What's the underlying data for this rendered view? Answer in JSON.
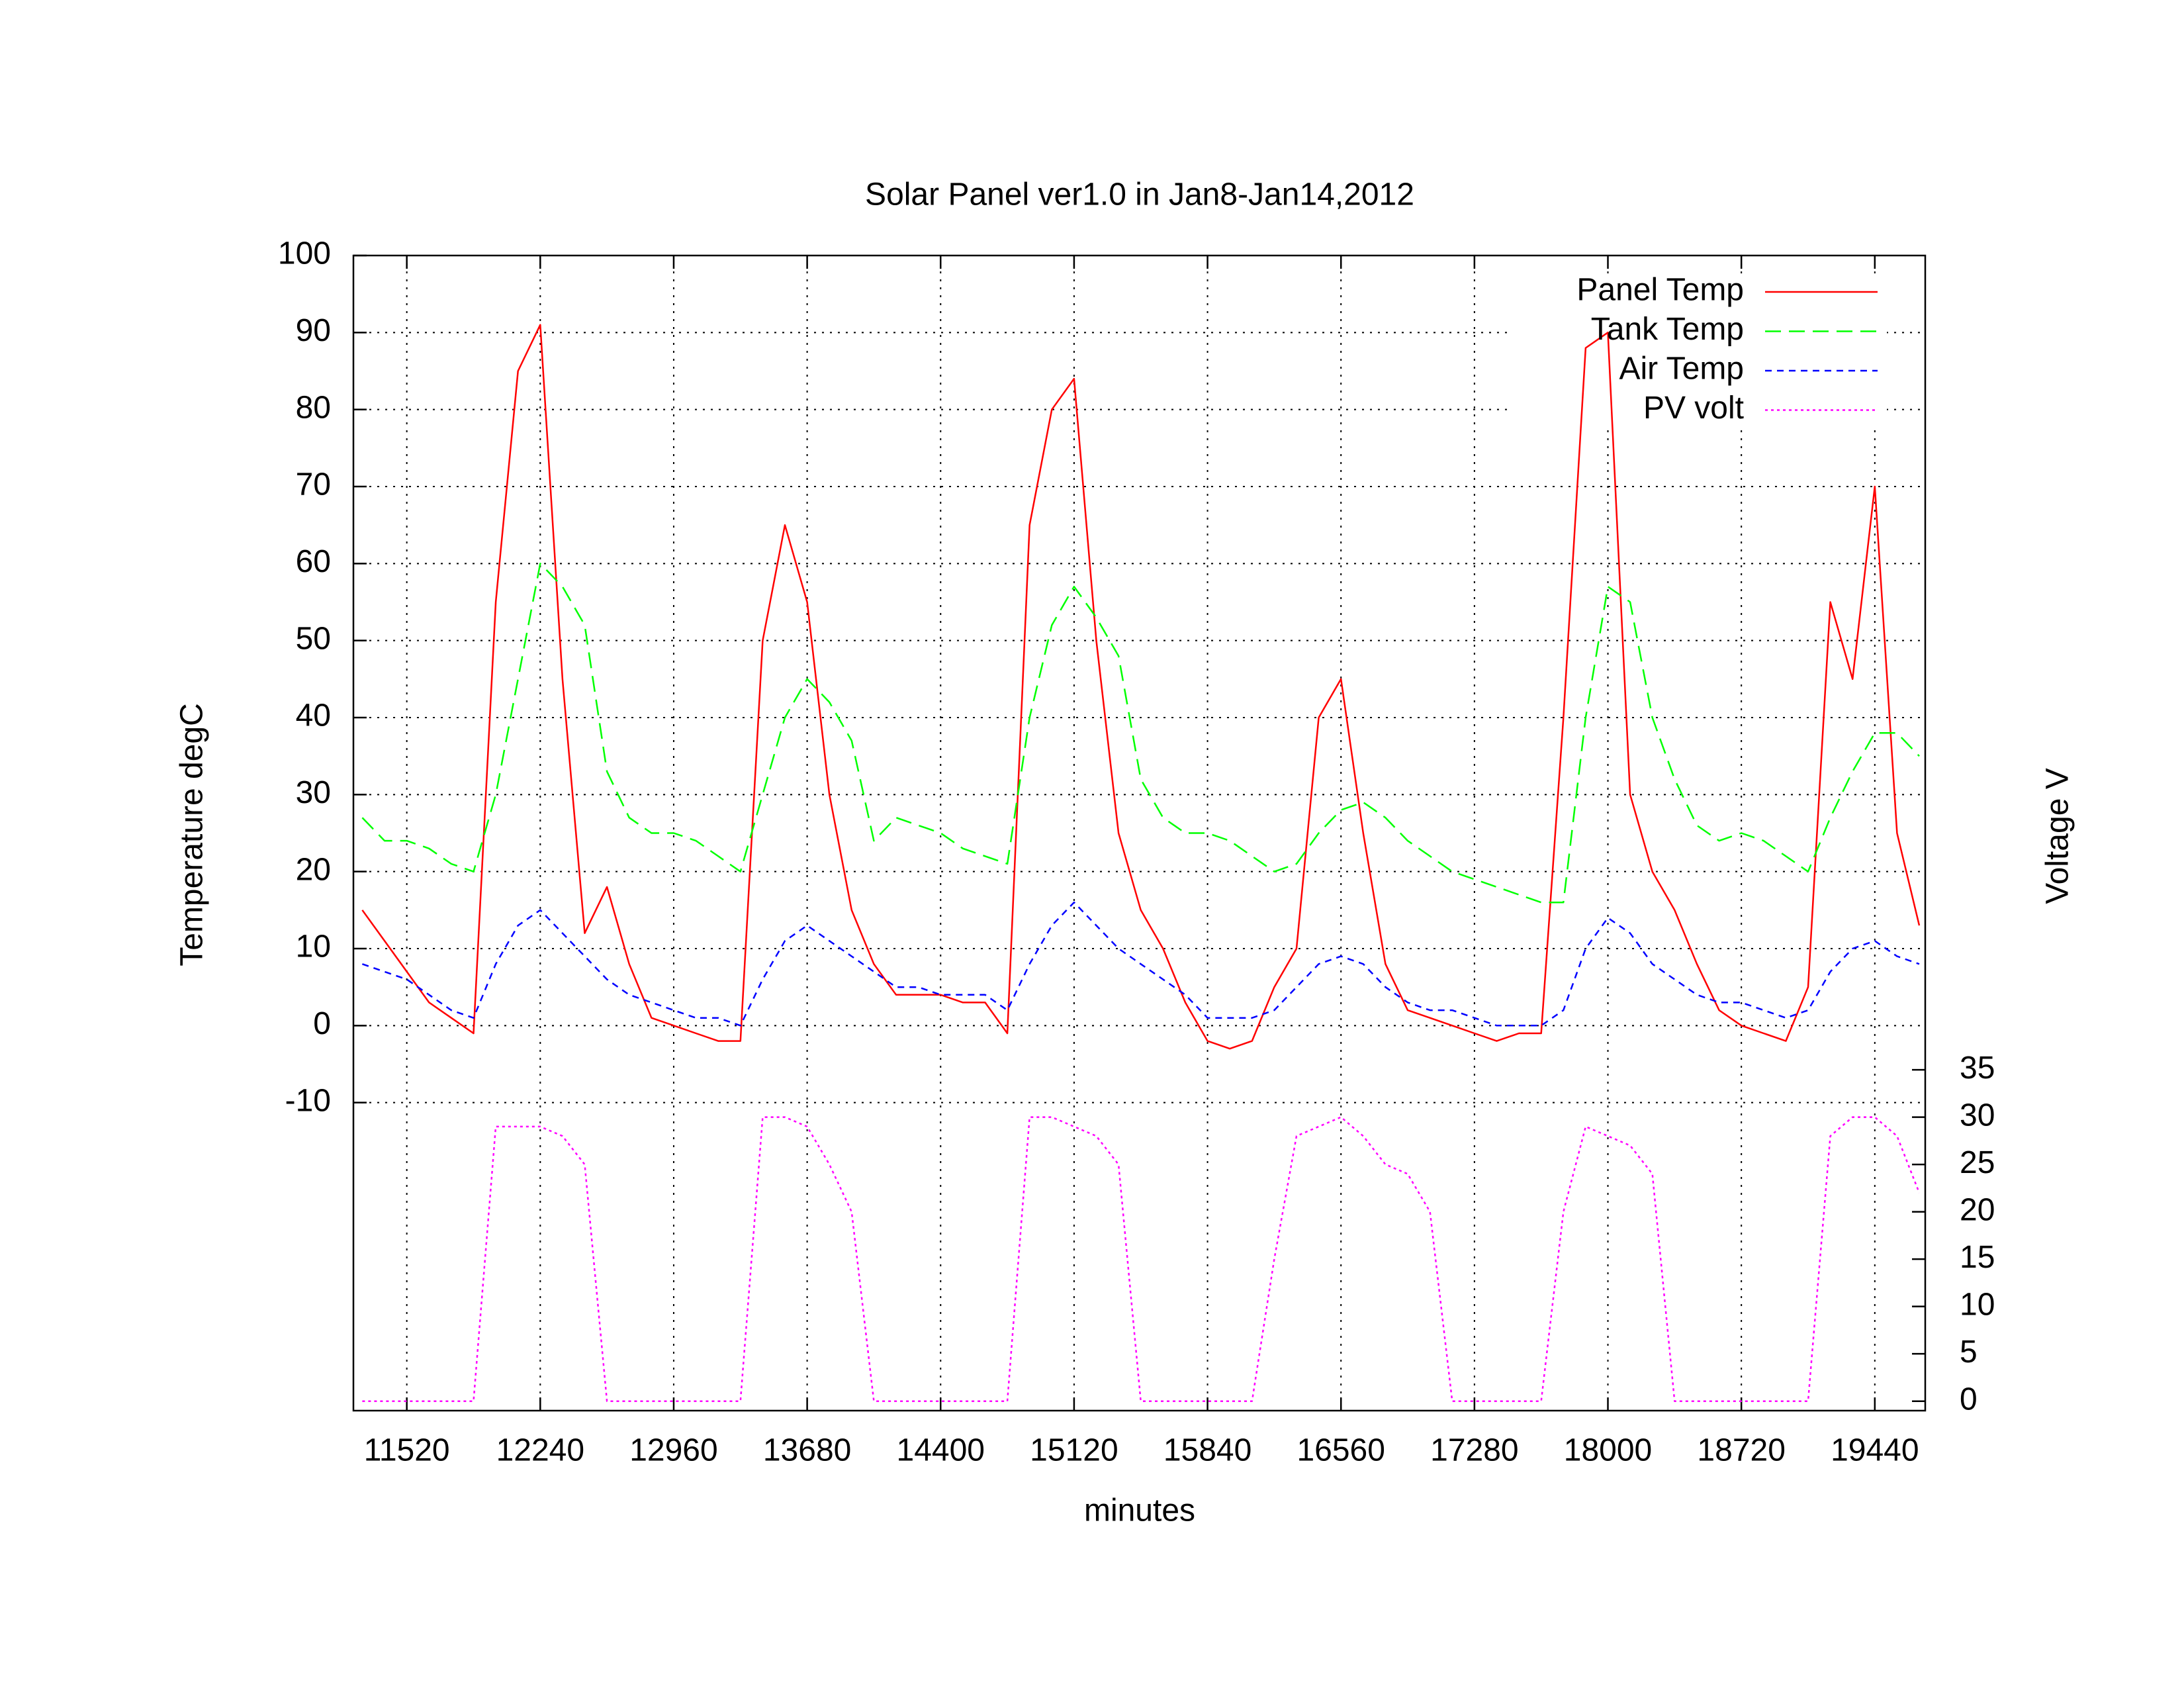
{
  "chart_data": {
    "type": "line",
    "title": "Solar Panel ver1.0 in Jan8-Jan14,2012",
    "x_label": "minutes",
    "y_label": "Temperature degC",
    "y2_label": "Voltage V",
    "x": [
      11280,
      11400,
      11520,
      11640,
      11760,
      11880,
      12000,
      12120,
      12240,
      12360,
      12480,
      12600,
      12720,
      12840,
      12960,
      13080,
      13200,
      13320,
      13440,
      13560,
      13680,
      13800,
      13920,
      14040,
      14160,
      14280,
      14400,
      14520,
      14640,
      14760,
      14880,
      15000,
      15120,
      15240,
      15360,
      15480,
      15600,
      15720,
      15840,
      15960,
      16080,
      16200,
      16320,
      16440,
      16560,
      16680,
      16800,
      16920,
      17040,
      17160,
      17280,
      17400,
      17520,
      17640,
      17760,
      17880,
      18000,
      18120,
      18240,
      18360,
      18480,
      18600,
      18720,
      18840,
      18960,
      19080,
      19200,
      19320,
      19440,
      19560,
      19680
    ],
    "series": [
      {
        "name": "Panel Temp",
        "color": "#ff0000",
        "dash": "solid",
        "values": [
          15,
          11,
          7,
          3,
          1,
          -1,
          55,
          85,
          91,
          45,
          12,
          18,
          8,
          1,
          0,
          -1,
          -2,
          -2,
          50,
          65,
          55,
          30,
          15,
          8,
          4,
          4,
          4,
          3,
          3,
          -1,
          65,
          80,
          84,
          50,
          25,
          15,
          10,
          3,
          -2,
          -3,
          -2,
          5,
          10,
          40,
          45,
          25,
          8,
          2,
          1,
          0,
          -1,
          -2,
          -1,
          -1,
          40,
          88,
          90,
          30,
          20,
          15,
          8,
          2,
          0,
          -1,
          -2,
          5,
          55,
          45,
          70,
          25,
          13
        ]
      },
      {
        "name": "Tank Temp",
        "color": "#00ff00",
        "dash": "dashed",
        "values": [
          27,
          24,
          24,
          23,
          21,
          20,
          30,
          45,
          60,
          57,
          52,
          33,
          27,
          25,
          25,
          24,
          22,
          20,
          30,
          40,
          45,
          42,
          37,
          24,
          27,
          26,
          25,
          23,
          22,
          21,
          40,
          52,
          57,
          53,
          48,
          32,
          27,
          25,
          25,
          24,
          22,
          20,
          21,
          25,
          28,
          29,
          27,
          24,
          22,
          20,
          19,
          18,
          17,
          16,
          16,
          40,
          57,
          55,
          40,
          32,
          26,
          24,
          25,
          24,
          22,
          20,
          27,
          33,
          38,
          38,
          35
        ]
      },
      {
        "name": "Air Temp",
        "color": "#0000ff",
        "dash": "short-dashed",
        "values": [
          8,
          7,
          6,
          4,
          2,
          1,
          8,
          13,
          15,
          12,
          9,
          6,
          4,
          3,
          2,
          1,
          1,
          0,
          6,
          11,
          13,
          11,
          9,
          7,
          5,
          5,
          4,
          4,
          4,
          2,
          8,
          13,
          16,
          13,
          10,
          8,
          6,
          4,
          1,
          1,
          1,
          2,
          5,
          8,
          9,
          8,
          5,
          3,
          2,
          2,
          1,
          0,
          0,
          0,
          2,
          10,
          14,
          12,
          8,
          6,
          4,
          3,
          3,
          2,
          1,
          2,
          7,
          10,
          11,
          9,
          8
        ]
      },
      {
        "name": "PV volt",
        "color": "#ff00ff",
        "dash": "dotted",
        "axis": "y2",
        "values": [
          0,
          0,
          0,
          0,
          0,
          0,
          29,
          29,
          29,
          28,
          25,
          0,
          0,
          0,
          0,
          0,
          0,
          0,
          30,
          30,
          29,
          25,
          20,
          0,
          0,
          0,
          0,
          0,
          0,
          0,
          30,
          30,
          29,
          28,
          25,
          0,
          0,
          0,
          0,
          0,
          0,
          15,
          28,
          29,
          30,
          28,
          25,
          24,
          20,
          0,
          0,
          0,
          0,
          0,
          20,
          29,
          28,
          27,
          24,
          0,
          0,
          0,
          0,
          0,
          0,
          0,
          28,
          30,
          30,
          28,
          22
        ]
      }
    ],
    "xlim": [
      11232,
      19712
    ],
    "xticks": [
      11520,
      12240,
      12960,
      13680,
      14400,
      15120,
      15840,
      16560,
      17280,
      18000,
      18720,
      19440
    ],
    "ylim": [
      -50,
      100
    ],
    "yticks": [
      -10,
      0,
      10,
      20,
      30,
      40,
      50,
      60,
      70,
      80,
      90,
      100
    ],
    "y2lim": [
      -1,
      121
    ],
    "y2ticks": [
      0,
      5,
      10,
      15,
      20,
      25,
      30,
      35
    ],
    "grid": true,
    "legend": "top right"
  }
}
